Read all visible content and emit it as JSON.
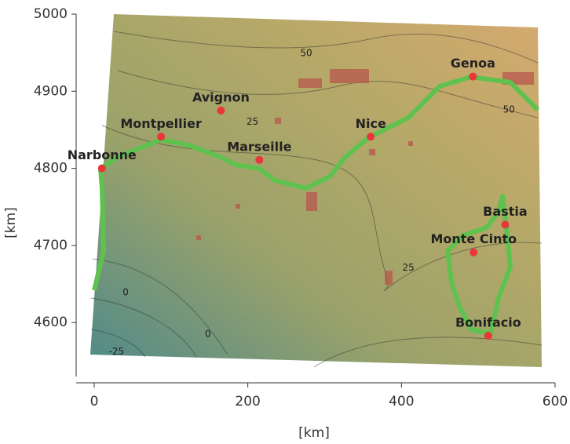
{
  "chart_data": {
    "type": "map",
    "xlabel": "[km]",
    "ylabel": "[km]",
    "xlim": [
      -23.5,
      600
    ],
    "xticks": [
      0,
      200,
      400,
      600
    ],
    "ylim": [
      4530,
      5000
    ],
    "yticks": [
      4600,
      4700,
      4800,
      4900,
      5000
    ],
    "color": "#e8363a",
    "points": [
      {
        "name": "Narbonne",
        "x": 10,
        "y": 4800
      },
      {
        "name": "Montpellier",
        "x": 87,
        "y": 4841
      },
      {
        "name": "Avignon",
        "x": 165,
        "y": 4875
      },
      {
        "name": "Marseille",
        "x": 215,
        "y": 4811
      },
      {
        "name": "Nice",
        "x": 360,
        "y": 4841
      },
      {
        "name": "Genoa",
        "x": 493,
        "y": 4919
      },
      {
        "name": "Bastia",
        "x": 535,
        "y": 4727
      },
      {
        "name": "Monte Cinto",
        "x": 494,
        "y": 4691
      },
      {
        "name": "Bonifacio",
        "x": 513,
        "y": 4583
      }
    ],
    "contour_labels": [
      {
        "text": "50",
        "x": 276,
        "y": 4949
      },
      {
        "text": "25",
        "x": 206,
        "y": 4860
      },
      {
        "text": "50",
        "x": 540,
        "y": 4876
      },
      {
        "text": "25",
        "x": 409,
        "y": 4671
      },
      {
        "text": "0",
        "x": 41,
        "y": 4639
      },
      {
        "text": "0",
        "x": 148,
        "y": 4585
      },
      {
        "text": "-25",
        "x": 29,
        "y": 4562
      }
    ]
  }
}
